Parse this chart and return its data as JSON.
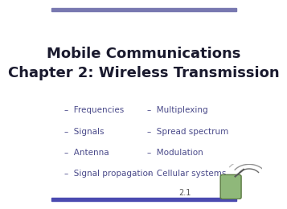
{
  "title_line1": "Mobile Communications",
  "title_line2": "Chapter 2: Wireless Transmission",
  "title_fontsize": 13,
  "title_color": "#1a1a2e",
  "title_bold": true,
  "left_items": [
    "Frequencies",
    "Signals",
    "Antenna",
    "Signal propagation"
  ],
  "right_items": [
    "Multiplexing",
    "Spread spectrum",
    "Modulation",
    "Cellular systems"
  ],
  "bullet_color": "#4a4a8a",
  "bullet_text_color": "#4a4a8a",
  "bullet_char": "–",
  "item_fontsize": 7.5,
  "background_color": "#ffffff",
  "top_bar_color": "#7878b0",
  "bottom_bar_color": "#4a4ab0",
  "top_bar_height": 0.018,
  "bottom_bar_height": 0.018,
  "slide_number": "2.1",
  "slide_num_fontsize": 7,
  "slide_num_color": "#555555"
}
